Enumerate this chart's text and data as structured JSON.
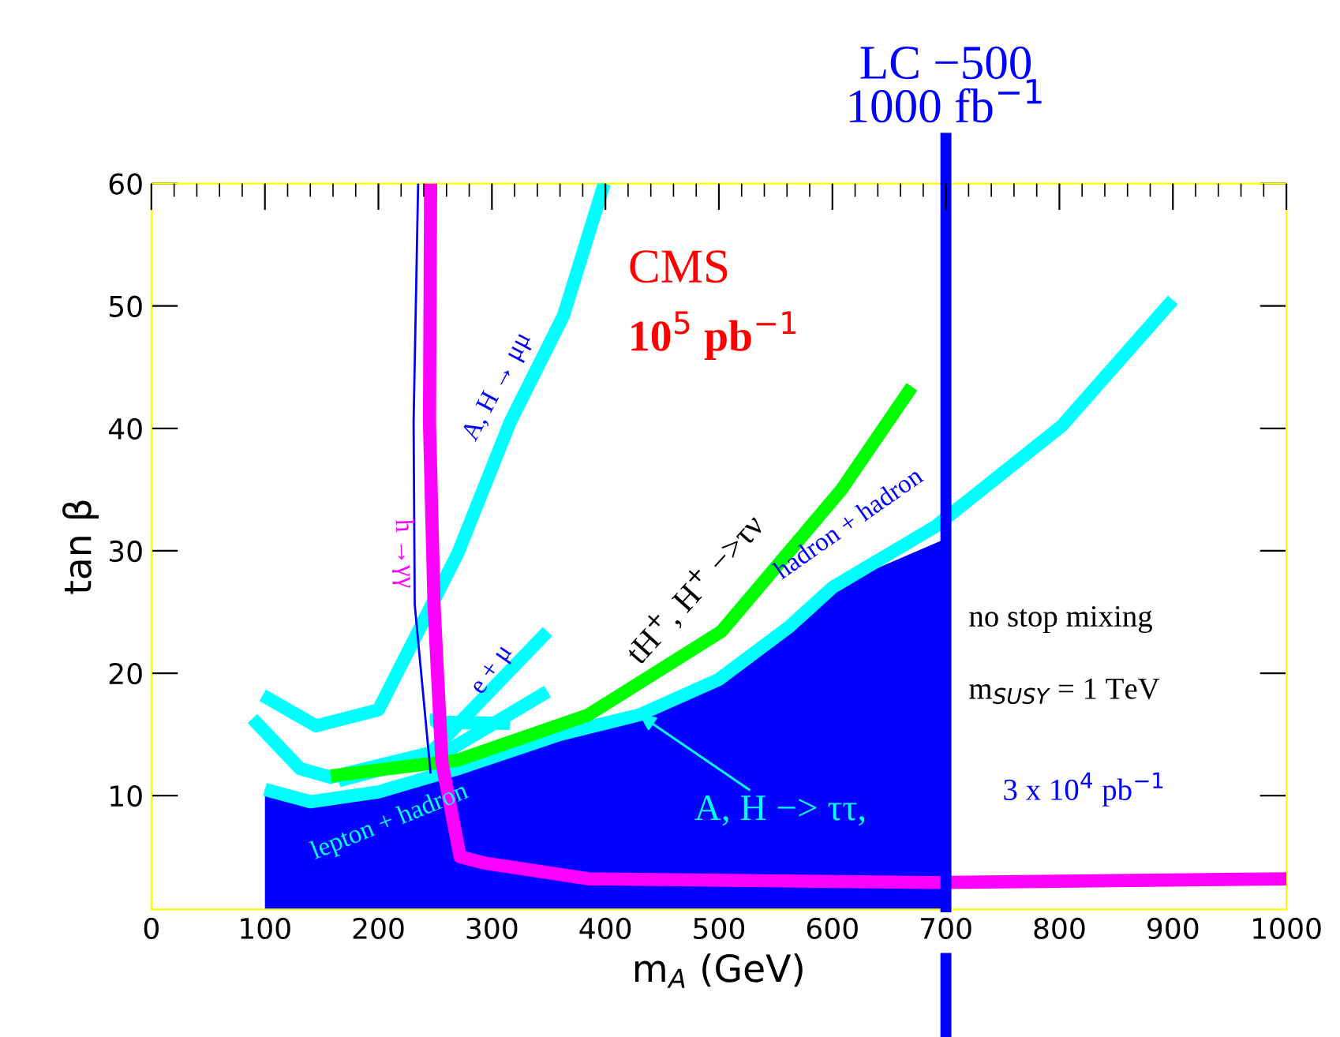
{
  "chart_data": {
    "type": "line",
    "xlabel": "m$_{A}$ (GeV)",
    "ylabel": "tan β",
    "xlim": [
      0,
      1000
    ],
    "ylim": [
      0.7,
      60
    ],
    "xticks": [
      0,
      100,
      200,
      300,
      400,
      500,
      600,
      700,
      800,
      900,
      1000
    ],
    "yticks": [
      10,
      20,
      30,
      40,
      50,
      60
    ],
    "series": [
      {
        "type": "area",
        "color": "#0000ff",
        "x": [
          100,
          140,
          200,
          270,
          360,
          430,
          500,
          562,
          600,
          700
        ],
        "values": [
          10.5,
          9.5,
          10.3,
          12.2,
          15,
          16.6,
          19.5,
          23.8,
          27,
          31
        ]
      },
      {
        "color": "#00ffff",
        "x": [
          100,
          140,
          200,
          270,
          360,
          430,
          500,
          562,
          600,
          691,
          802,
          900
        ],
        "values": [
          10.5,
          9.5,
          10.3,
          12.2,
          15,
          16.6,
          19.5,
          23.8,
          27,
          32,
          40.2,
          50.5
        ]
      },
      {
        "color": "#00ffff",
        "x": [
          165,
          260,
          349
        ],
        "values": [
          11.2,
          13.6,
          18.5
        ]
      },
      {
        "color": "#00ffff",
        "x": [
          251,
          251,
          316
        ],
        "values": [
          16.7,
          16.0,
          15.9
        ]
      },
      {
        "color": "#00ffff",
        "x": [
          89,
          131,
          158,
          246,
          349
        ],
        "values": [
          16.3,
          12.2,
          11.5,
          13.5,
          23.4
        ]
      },
      {
        "color": "#00ffff",
        "x": [
          98,
          145,
          200,
          270,
          316,
          363,
          399
        ],
        "values": [
          18.2,
          15.7,
          17,
          29.8,
          40.5,
          49.2,
          60
        ]
      },
      {
        "color": "#00ff00",
        "x": [
          158,
          270,
          385,
          502,
          557,
          608,
          670
        ],
        "values": [
          11.6,
          12.9,
          16.6,
          23.4,
          29.4,
          35,
          43.4
        ]
      },
      {
        "color": "#0000ff",
        "x": [
          235,
          231,
          232,
          246
        ],
        "values": [
          60,
          40.5,
          25.6,
          11.8
        ]
      },
      {
        "color": "#ff00ff",
        "x": [
          246,
          245,
          249,
          256,
          272,
          293,
          385,
          687,
          1000
        ],
        "values": [
          60,
          40.5,
          25.6,
          12.7,
          5,
          4.5,
          3.2,
          2.9,
          3.2
        ]
      }
    ],
    "ref_lines": [
      {
        "axis": "x",
        "value": 700,
        "label": "LC −500\n1000 fb$^{−1}$",
        "color": "#0000ff"
      }
    ],
    "annotations": [
      "h →γγ",
      "A, H → μμ",
      "e + μ",
      "tH$^{+}$, H$^{+}$ −>τν",
      "hadron + hadron",
      "lepton + hadron",
      {
        "text": "A, H −> ττ,",
        "x": 430,
        "y": 16.6
      },
      "CMS",
      "10$^{5}$ pb$^{−1}$",
      "no stop mixing",
      "m$_{SUSY}$ = 1 TeV",
      "3 x 10$^{4}$ pb$^{−1}$"
    ]
  }
}
